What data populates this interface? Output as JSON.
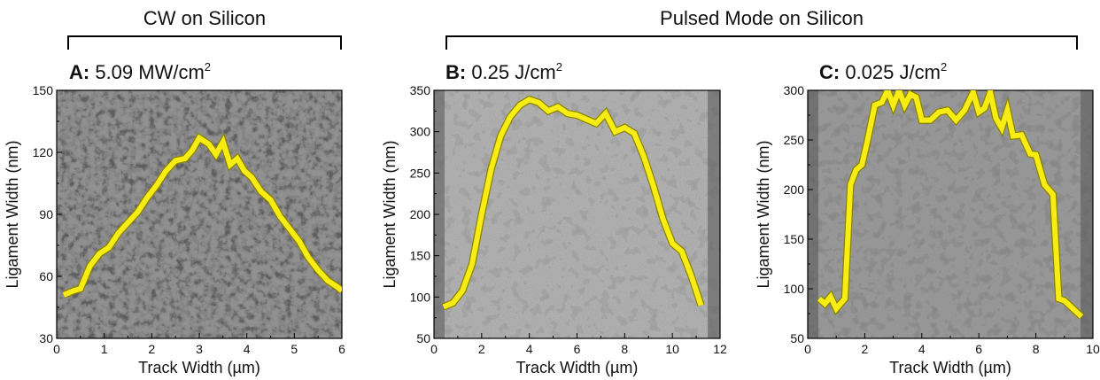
{
  "groups": [
    {
      "title": "CW on Silicon"
    },
    {
      "title": "Pulsed Mode on Silicon"
    }
  ],
  "panels": [
    {
      "letter": "A:",
      "value": " 5.09 MW/cm",
      "sup": "2"
    },
    {
      "letter": "B:",
      "value": " 0.25 J/cm",
      "sup": "2"
    },
    {
      "letter": "C:",
      "value": " 0.025 J/cm",
      "sup": "2"
    }
  ],
  "colors": {
    "line": "#f7ec13",
    "line_edge": "#8a8200",
    "sem_dark": "#3a3a3a",
    "sem_light": "#bdbdbd"
  },
  "chart_data": [
    {
      "type": "line",
      "title": "A: 5.09 MW/cm2",
      "xlabel": "Track Width (µm)",
      "ylabel": "Ligament Width (nm)",
      "xlim": [
        0,
        6
      ],
      "ylim": [
        30,
        150
      ],
      "xticks": [
        0,
        1,
        2,
        3,
        4,
        5,
        6
      ],
      "yticks": [
        30,
        60,
        90,
        120,
        150
      ],
      "background": "SEM image",
      "series": [
        {
          "x": [
            0.15,
            0.35,
            0.5,
            0.7,
            0.9,
            1.1,
            1.3,
            1.5,
            1.7,
            1.9,
            2.1,
            2.3,
            2.5,
            2.7,
            2.85,
            3.0,
            3.2,
            3.35,
            3.5,
            3.65,
            3.8,
            3.95,
            4.1,
            4.3,
            4.5,
            4.7,
            4.9,
            5.1,
            5.3,
            5.5,
            5.7,
            5.9,
            6.0
          ],
          "y": [
            51,
            53,
            54,
            65,
            71,
            74,
            81,
            86,
            91,
            98,
            104,
            111,
            116,
            117,
            121,
            127,
            124,
            119,
            125,
            114,
            117,
            111,
            108,
            101,
            97,
            89,
            83,
            77,
            69,
            63,
            58,
            55,
            53
          ]
        }
      ]
    },
    {
      "type": "line",
      "title": "B: 0.25 J/cm2",
      "xlabel": "Track Width (µm)",
      "ylabel": "Ligament Width (nm)",
      "xlim": [
        0,
        12
      ],
      "ylim": [
        50,
        350
      ],
      "xticks": [
        0,
        2,
        4,
        6,
        8,
        10,
        12
      ],
      "yticks": [
        50,
        100,
        150,
        200,
        250,
        300,
        350
      ],
      "background": "SEM image",
      "series": [
        {
          "x": [
            0.4,
            0.8,
            1.2,
            1.6,
            2.0,
            2.4,
            2.8,
            3.2,
            3.6,
            4.0,
            4.4,
            4.8,
            5.2,
            5.6,
            6.0,
            6.4,
            6.8,
            7.2,
            7.6,
            8.0,
            8.4,
            8.8,
            9.2,
            9.6,
            10.0,
            10.4,
            10.8,
            11.2
          ],
          "y": [
            88,
            93,
            108,
            140,
            200,
            255,
            295,
            318,
            332,
            339,
            335,
            325,
            330,
            322,
            320,
            315,
            310,
            322,
            300,
            305,
            298,
            270,
            235,
            195,
            165,
            155,
            125,
            90
          ]
        }
      ]
    },
    {
      "type": "line",
      "title": "C: 0.025 J/cm2",
      "xlabel": "Track Width (µm)",
      "ylabel": "Ligament Width (nm)",
      "xlim": [
        0,
        10
      ],
      "ylim": [
        50,
        300
      ],
      "xticks": [
        0,
        2,
        4,
        6,
        8,
        10
      ],
      "yticks": [
        50,
        100,
        150,
        200,
        250,
        300
      ],
      "background": "SEM image",
      "series": [
        {
          "x": [
            0.4,
            0.6,
            0.8,
            1.0,
            1.3,
            1.5,
            1.7,
            1.9,
            2.1,
            2.35,
            2.6,
            2.8,
            3.0,
            3.2,
            3.4,
            3.6,
            3.8,
            4.0,
            4.3,
            4.6,
            4.9,
            5.2,
            5.5,
            5.8,
            6.0,
            6.2,
            6.4,
            6.6,
            6.8,
            7.0,
            7.2,
            7.5,
            7.8,
            8.0,
            8.3,
            8.6,
            8.8,
            9.0,
            9.3,
            9.6
          ],
          "y": [
            90,
            85,
            92,
            80,
            90,
            205,
            220,
            225,
            250,
            285,
            288,
            300,
            285,
            300,
            285,
            296,
            293,
            270,
            270,
            278,
            280,
            270,
            280,
            298,
            278,
            282,
            298,
            272,
            262,
            280,
            254,
            255,
            236,
            235,
            205,
            195,
            90,
            88,
            80,
            72
          ]
        }
      ]
    }
  ]
}
